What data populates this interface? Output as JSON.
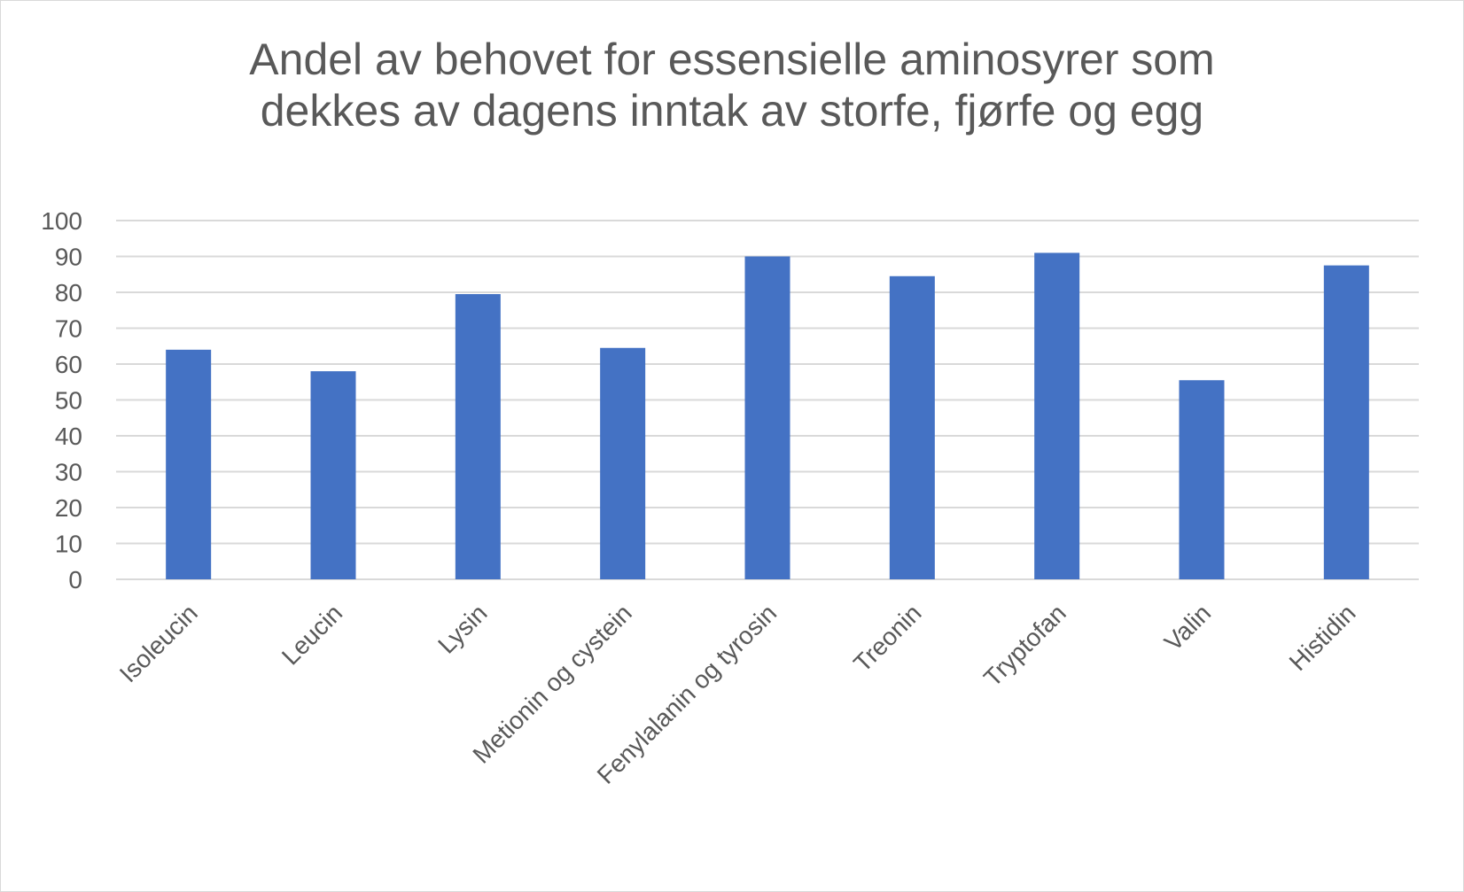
{
  "chart_data": {
    "type": "bar",
    "title_lines": [
      "Andel av behovet for essensielle aminosyrer som",
      "dekkes av dagens inntak av storfe, fjørfe og egg"
    ],
    "categories": [
      "Isoleucin",
      "Leucin",
      "Lysin",
      "Metionin og cystein",
      "Fenylalanin og tyrosin",
      "Treonin",
      "Tryptofan",
      "Valin",
      "Histidin"
    ],
    "values": [
      64,
      58,
      79.5,
      64.5,
      90,
      84.5,
      91,
      55.5,
      87.5
    ],
    "y_ticks": [
      "0",
      "10",
      "20",
      "30",
      "40",
      "50",
      "60",
      "70",
      "80",
      "90",
      "100"
    ],
    "ylim": [
      0,
      100
    ],
    "grid": true,
    "bar_color": "#4472c4",
    "grid_color": "#d9d9d9"
  }
}
